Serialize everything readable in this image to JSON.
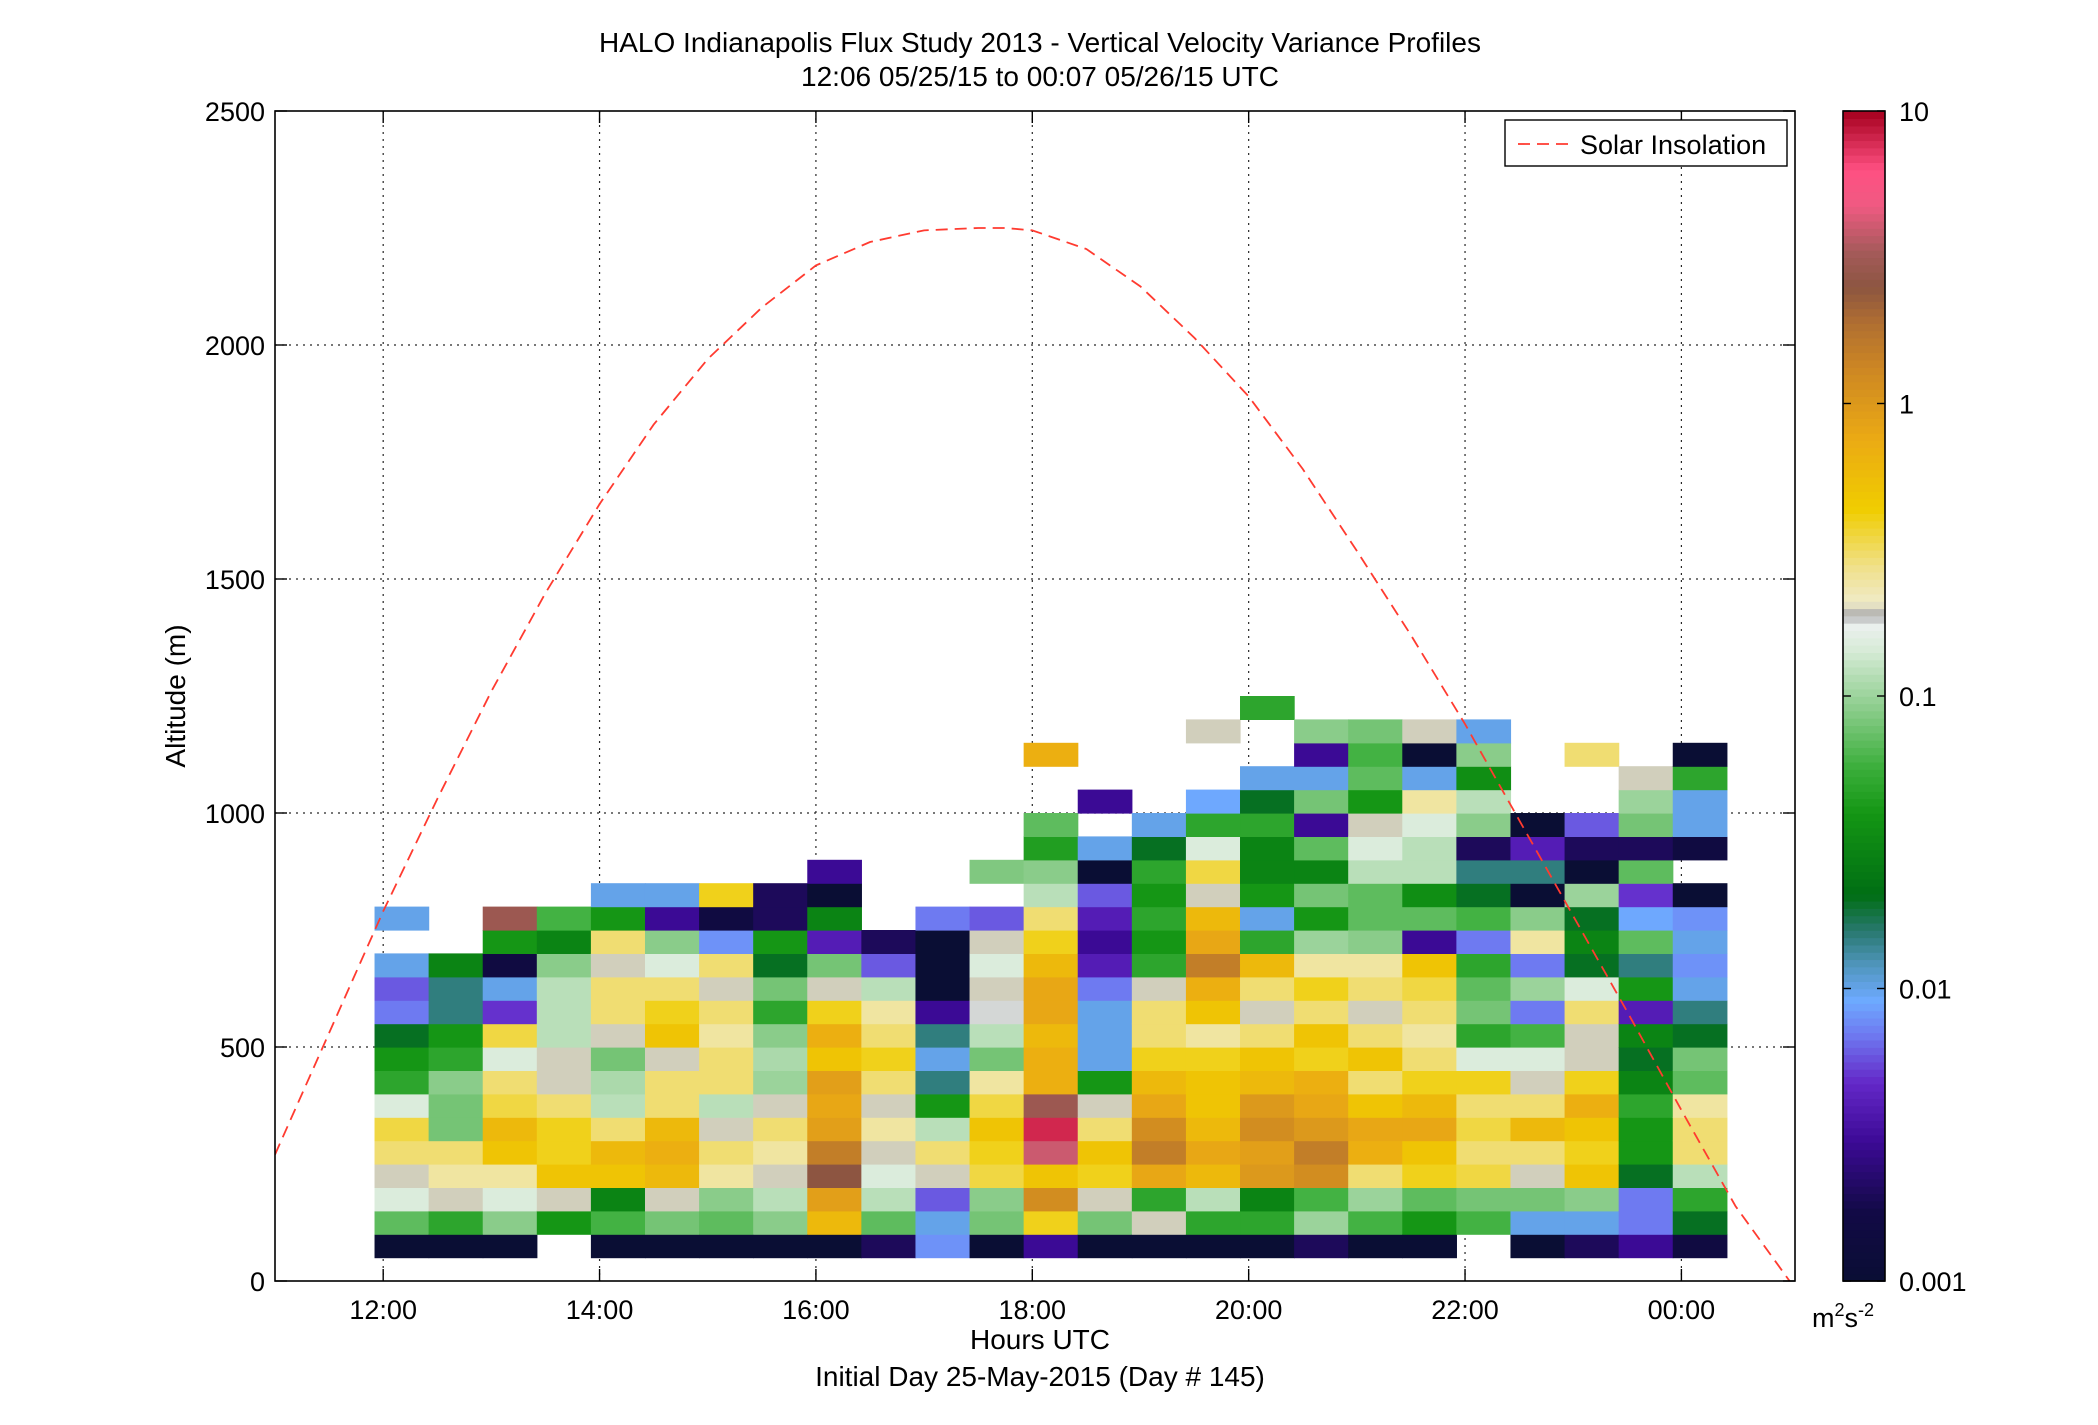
{
  "chart_data": {
    "type": "heatmap",
    "title": "HALO Indianapolis Flux Study 2013 - Vertical Velocity Variance Profiles",
    "subtitle": "12:06 05/25/15 to 00:07 05/26/15  UTC",
    "xlabel": "Hours UTC",
    "xlabel2": "Initial Day 25-May-2015 (Day # 145)",
    "ylabel": "Altitude (m)",
    "x_unit": "hours UTC",
    "xlim": [
      11.0,
      25.05
    ],
    "ylim": [
      0,
      2500
    ],
    "x_ticks": [
      12,
      14,
      16,
      18,
      20,
      22,
      24
    ],
    "x_tick_labels": [
      "12:00",
      "14:00",
      "16:00",
      "18:00",
      "20:00",
      "22:00",
      "00:00"
    ],
    "y_ticks": [
      0,
      500,
      1000,
      1500,
      2000,
      2500
    ],
    "y_tick_labels": [
      "0",
      "500",
      "1000",
      "1500",
      "2000",
      "2500"
    ],
    "grid": true,
    "legend": {
      "placement": "top-right",
      "entries": [
        "Solar Insolation"
      ]
    },
    "colorbar": {
      "scale": "log",
      "min": 0.001,
      "max": 10,
      "ticks": [
        0.001,
        0.01,
        0.1,
        1,
        10
      ],
      "tick_labels": [
        "0.001",
        "0.01",
        "0.1",
        "1",
        "10"
      ],
      "unit_base": "m",
      "unit_sup1": "2",
      "unit_mid": "s",
      "unit_sup2": "-2"
    },
    "profile_times": [
      12.17,
      12.67,
      13.17,
      13.67,
      14.17,
      14.67,
      15.17,
      15.67,
      16.17,
      16.67,
      17.17,
      17.67,
      18.17,
      18.67,
      19.17,
      19.67,
      20.17,
      20.67,
      21.17,
      21.67,
      22.17,
      22.67,
      23.17,
      23.67,
      24.17
    ],
    "altitude_bin_width_m": 50,
    "altitude_bins_m": [
      75,
      125,
      175,
      225,
      275,
      325,
      375,
      425,
      475,
      525,
      575,
      625,
      675,
      725,
      775,
      825,
      875,
      925,
      975,
      1025,
      1075,
      1125,
      1175,
      1225
    ],
    "values_m2s2": [
      [
        0.001,
        0.07,
        0.15,
        0.2,
        0.3,
        0.35,
        0.15,
        0.05,
        0.04,
        0.02,
        0.007,
        0.006,
        0.01,
        null,
        0.01,
        null,
        null,
        null,
        null,
        null,
        null,
        null,
        null,
        null
      ],
      [
        0.001,
        0.05,
        0.2,
        0.25,
        0.3,
        0.08,
        0.08,
        0.09,
        0.05,
        0.04,
        0.015,
        0.015,
        0.03,
        null,
        null,
        null,
        null,
        null,
        null,
        null,
        null,
        null,
        null,
        null
      ],
      [
        0.001,
        0.09,
        0.15,
        0.25,
        0.5,
        0.6,
        0.35,
        0.3,
        0.15,
        0.35,
        0.005,
        0.01,
        0.0015,
        0.04,
        3,
        null,
        null,
        null,
        null,
        null,
        null,
        null,
        null,
        null
      ],
      [
        null,
        0.04,
        0.2,
        0.5,
        0.4,
        0.4,
        0.3,
        0.2,
        0.2,
        0.12,
        0.12,
        0.12,
        0.09,
        0.03,
        0.06,
        null,
        null,
        null,
        null,
        null,
        null,
        null,
        null,
        null
      ],
      [
        0.001,
        0.06,
        0.03,
        0.5,
        0.6,
        0.3,
        0.12,
        0.11,
        0.08,
        0.2,
        0.3,
        0.3,
        0.2,
        0.3,
        0.04,
        0.01,
        null,
        null,
        null,
        null,
        null,
        null,
        null,
        null
      ],
      [
        0.001,
        0.08,
        0.2,
        0.6,
        0.7,
        0.6,
        0.3,
        0.3,
        0.2,
        0.5,
        0.4,
        0.3,
        0.15,
        0.09,
        0.003,
        0.01,
        null,
        null,
        null,
        null,
        null,
        null,
        null,
        null
      ],
      [
        0.001,
        0.07,
        0.09,
        0.25,
        0.3,
        0.2,
        0.12,
        0.3,
        0.3,
        0.25,
        0.3,
        0.2,
        0.3,
        0.008,
        0.0015,
        0.4,
        null,
        null,
        null,
        null,
        null,
        null,
        null,
        null
      ],
      [
        0.001,
        0.09,
        0.12,
        0.2,
        0.25,
        0.3,
        0.2,
        0.1,
        0.11,
        0.09,
        0.05,
        0.08,
        0.02,
        0.04,
        0.002,
        0.002,
        null,
        null,
        null,
        null,
        null,
        null,
        null,
        null
      ],
      [
        0.001,
        0.6,
        0.9,
        2.5,
        1.5,
        0.9,
        0.8,
        0.9,
        0.5,
        0.7,
        0.4,
        0.2,
        0.08,
        0.004,
        0.03,
        0.001,
        0.003,
        null,
        null,
        null,
        null,
        null,
        null,
        null
      ],
      [
        0.002,
        0.07,
        0.12,
        0.15,
        0.2,
        0.25,
        0.2,
        0.3,
        0.4,
        0.3,
        0.25,
        0.12,
        0.006,
        0.002,
        null,
        null,
        null,
        null,
        null,
        null,
        null,
        null,
        null,
        null
      ],
      [
        0.008,
        0.01,
        0.006,
        0.2,
        0.3,
        0.12,
        0.04,
        0.015,
        0.01,
        0.015,
        0.003,
        0.001,
        0.001,
        0.001,
        0.007,
        null,
        null,
        null,
        null,
        null,
        null,
        null,
        null,
        null
      ],
      [
        0.001,
        0.08,
        0.09,
        0.35,
        0.4,
        0.5,
        0.35,
        0.25,
        0.08,
        0.12,
        0.18,
        0.2,
        0.15,
        0.2,
        0.006,
        null,
        0.085,
        null,
        null,
        null,
        null,
        null,
        null,
        null
      ],
      [
        0.003,
        0.4,
        1.2,
        0.5,
        4,
        8,
        3,
        0.7,
        0.7,
        0.6,
        0.8,
        0.8,
        0.6,
        0.4,
        0.3,
        0.12,
        0.09,
        0.045,
        0.07,
        null,
        null,
        0.7,
        null,
        null
      ],
      [
        0.001,
        0.08,
        0.2,
        0.4,
        0.5,
        0.3,
        0.2,
        0.04,
        0.01,
        0.01,
        0.01,
        0.007,
        0.004,
        0.003,
        0.004,
        0.006,
        0.001,
        0.01,
        null,
        0.003,
        null,
        null,
        null,
        null
      ],
      [
        0.001,
        0.2,
        0.05,
        0.8,
        1.5,
        1.2,
        0.8,
        0.6,
        0.4,
        0.3,
        0.3,
        0.2,
        0.05,
        0.04,
        0.05,
        0.04,
        0.05,
        0.02,
        0.01,
        null,
        null,
        null,
        null,
        null
      ],
      [
        0.001,
        0.05,
        0.12,
        0.6,
        0.8,
        0.6,
        0.5,
        0.5,
        0.4,
        0.25,
        0.5,
        0.7,
        1.5,
        0.8,
        0.6,
        0.2,
        0.35,
        0.15,
        0.05,
        0.009,
        null,
        null,
        0.2,
        null
      ],
      [
        0.001,
        0.05,
        0.03,
        1,
        0.9,
        1.2,
        1,
        0.6,
        0.5,
        0.3,
        0.2,
        0.3,
        0.6,
        0.05,
        0.01,
        0.04,
        0.03,
        0.03,
        0.05,
        0.02,
        0.01,
        null,
        null,
        0.05
      ],
      [
        0.002,
        0.1,
        0.06,
        1.2,
        1.5,
        1,
        0.8,
        0.7,
        0.4,
        0.5,
        0.3,
        0.4,
        0.25,
        0.1,
        0.04,
        0.08,
        0.03,
        0.07,
        0.003,
        0.08,
        0.01,
        0.003,
        0.09,
        null
      ],
      [
        0.001,
        0.06,
        0.1,
        0.3,
        0.7,
        0.8,
        0.5,
        0.3,
        0.5,
        0.3,
        0.2,
        0.3,
        0.25,
        0.09,
        0.07,
        0.07,
        0.12,
        0.15,
        0.2,
        0.04,
        0.07,
        0.06,
        0.08,
        null
      ],
      [
        0.001,
        0.04,
        0.07,
        0.4,
        0.5,
        0.8,
        0.6,
        0.4,
        0.3,
        0.25,
        0.3,
        0.35,
        0.5,
        0.003,
        0.07,
        0.035,
        0.12,
        0.12,
        0.15,
        0.25,
        0.01,
        0.001,
        0.2,
        null
      ],
      [
        null,
        0.06,
        0.08,
        0.35,
        0.3,
        0.35,
        0.3,
        0.4,
        0.15,
        0.05,
        0.08,
        0.07,
        0.05,
        0.007,
        0.06,
        0.02,
        0.015,
        0.002,
        0.09,
        0.12,
        0.035,
        0.09,
        0.01,
        null
      ],
      [
        0.001,
        0.01,
        0.08,
        0.2,
        0.3,
        0.6,
        0.3,
        0.2,
        0.15,
        0.06,
        0.007,
        0.1,
        0.007,
        0.25,
        0.09,
        0.001,
        0.015,
        0.004,
        0.001,
        null,
        null,
        null,
        null,
        null
      ],
      [
        0.002,
        0.01,
        0.09,
        0.5,
        0.4,
        0.5,
        0.7,
        0.4,
        0.2,
        0.2,
        0.3,
        0.15,
        0.02,
        0.03,
        0.02,
        0.1,
        0.001,
        0.002,
        0.006,
        null,
        null,
        0.3,
        null,
        null
      ],
      [
        0.003,
        0.007,
        0.007,
        0.02,
        0.04,
        0.04,
        0.05,
        0.03,
        0.02,
        0.03,
        0.004,
        0.04,
        0.015,
        0.07,
        0.009,
        0.005,
        0.07,
        0.002,
        0.08,
        0.1,
        0.2,
        null,
        null,
        null
      ],
      [
        0.0015,
        0.02,
        0.05,
        0.12,
        0.3,
        0.3,
        0.25,
        0.07,
        0.08,
        0.02,
        0.015,
        0.01,
        0.008,
        0.01,
        0.008,
        0.001,
        null,
        0.0015,
        0.01,
        0.01,
        0.05,
        0.001,
        null,
        null
      ]
    ],
    "series": [
      {
        "name": "Solar Insolation",
        "style": "red dashed line",
        "color": "#ff3b30",
        "x": [
          11.0,
          11.5,
          12.0,
          12.5,
          13.0,
          13.5,
          14.0,
          14.5,
          15.0,
          15.5,
          16.0,
          16.5,
          17.0,
          17.5,
          17.75,
          18.0,
          18.5,
          19.0,
          19.5,
          20.0,
          20.5,
          21.0,
          21.5,
          22.0,
          22.5,
          23.0,
          23.5,
          24.0,
          24.5,
          25.0
        ],
        "y": [
          270,
          530,
          790,
          1030,
          1260,
          1470,
          1660,
          1830,
          1970,
          2080,
          2170,
          2220,
          2245,
          2250,
          2250,
          2245,
          2205,
          2125,
          2015,
          1890,
          1735,
          1560,
          1380,
          1190,
          985,
          780,
          575,
          365,
          160,
          0
        ]
      }
    ]
  }
}
